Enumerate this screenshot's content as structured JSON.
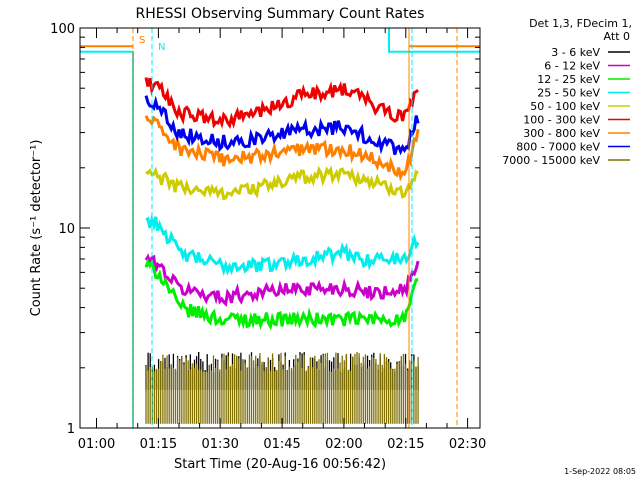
{
  "chart_data": {
    "type": "line",
    "title": "RHESSI Observing Summary Count Rates",
    "xlabel": "Start Time (20-Aug-16 00:56:42)",
    "ylabel": "Count Rate (s⁻¹ detector⁻¹)",
    "x_range": [
      "00:56",
      "02:33"
    ],
    "x_ticks": [
      "01:00",
      "01:15",
      "01:30",
      "01:45",
      "02:00",
      "02:15",
      "02:30"
    ],
    "y_scale": "log",
    "ylim": [
      1,
      100
    ],
    "y_tick_labels": [
      "1",
      "10",
      "100"
    ],
    "grid": false,
    "legend_header": [
      "Det 1,3, FDecim 1,",
      "Att 0"
    ],
    "legend_position": "top-right",
    "footer_date": "1-Sep-2022 08:05",
    "x": [
      "01:12",
      "01:15",
      "01:20",
      "01:30",
      "01:40",
      "01:50",
      "02:00",
      "02:05",
      "02:10",
      "02:15",
      "02:18"
    ],
    "series": [
      {
        "name": "3 - 6 keV",
        "color": "#000000",
        "values": [
          2.0,
          2.0,
          2.0,
          2.0,
          2.0,
          2.0,
          2.0,
          2.0,
          2.0,
          2.0,
          2.0
        ]
      },
      {
        "name": "6 - 12 keV",
        "color": "#cc00cc",
        "values": [
          7.0,
          6.5,
          5.0,
          4.5,
          4.8,
          5.0,
          5.0,
          4.8,
          4.8,
          5.0,
          6.5
        ]
      },
      {
        "name": "12 - 25 keV",
        "color": "#00ee00",
        "values": [
          6.5,
          6.0,
          4.0,
          3.5,
          3.5,
          3.5,
          3.5,
          3.5,
          3.5,
          3.5,
          5.5
        ]
      },
      {
        "name": "25 - 50 keV",
        "color": "#00eeee",
        "values": [
          11.0,
          10.5,
          7.5,
          6.5,
          6.5,
          7.0,
          7.5,
          7.0,
          7.0,
          7.0,
          9.0
        ]
      },
      {
        "name": "50 - 100 keV",
        "color": "#cccc00",
        "values": [
          19.0,
          18.0,
          16.0,
          15.0,
          16.0,
          18.0,
          19.0,
          17.5,
          16.0,
          15.5,
          19.0
        ]
      },
      {
        "name": "100 - 300 keV",
        "color": "#ee0000",
        "values": [
          55.0,
          50.0,
          38.0,
          34.0,
          38.0,
          46.0,
          50.0,
          44.0,
          38.0,
          36.0,
          50.0
        ]
      },
      {
        "name": "300 - 800 keV",
        "color": "#ff8000",
        "values": [
          36.0,
          32.0,
          25.0,
          22.0,
          23.0,
          25.0,
          25.0,
          23.0,
          21.0,
          19.0,
          30.0
        ]
      },
      {
        "name": "800 - 7000 keV",
        "color": "#0000ee",
        "values": [
          45.0,
          40.0,
          30.0,
          27.0,
          28.0,
          31.0,
          32.0,
          29.0,
          26.0,
          24.0,
          36.0
        ]
      },
      {
        "name": "7000 - 15000 keV",
        "color": "#807000",
        "values": [
          2.0,
          2.0,
          2.0,
          2.0,
          2.0,
          2.0,
          2.0,
          2.0,
          2.0,
          2.0,
          2.0
        ]
      }
    ],
    "annotations": [
      "S",
      "N"
    ]
  }
}
